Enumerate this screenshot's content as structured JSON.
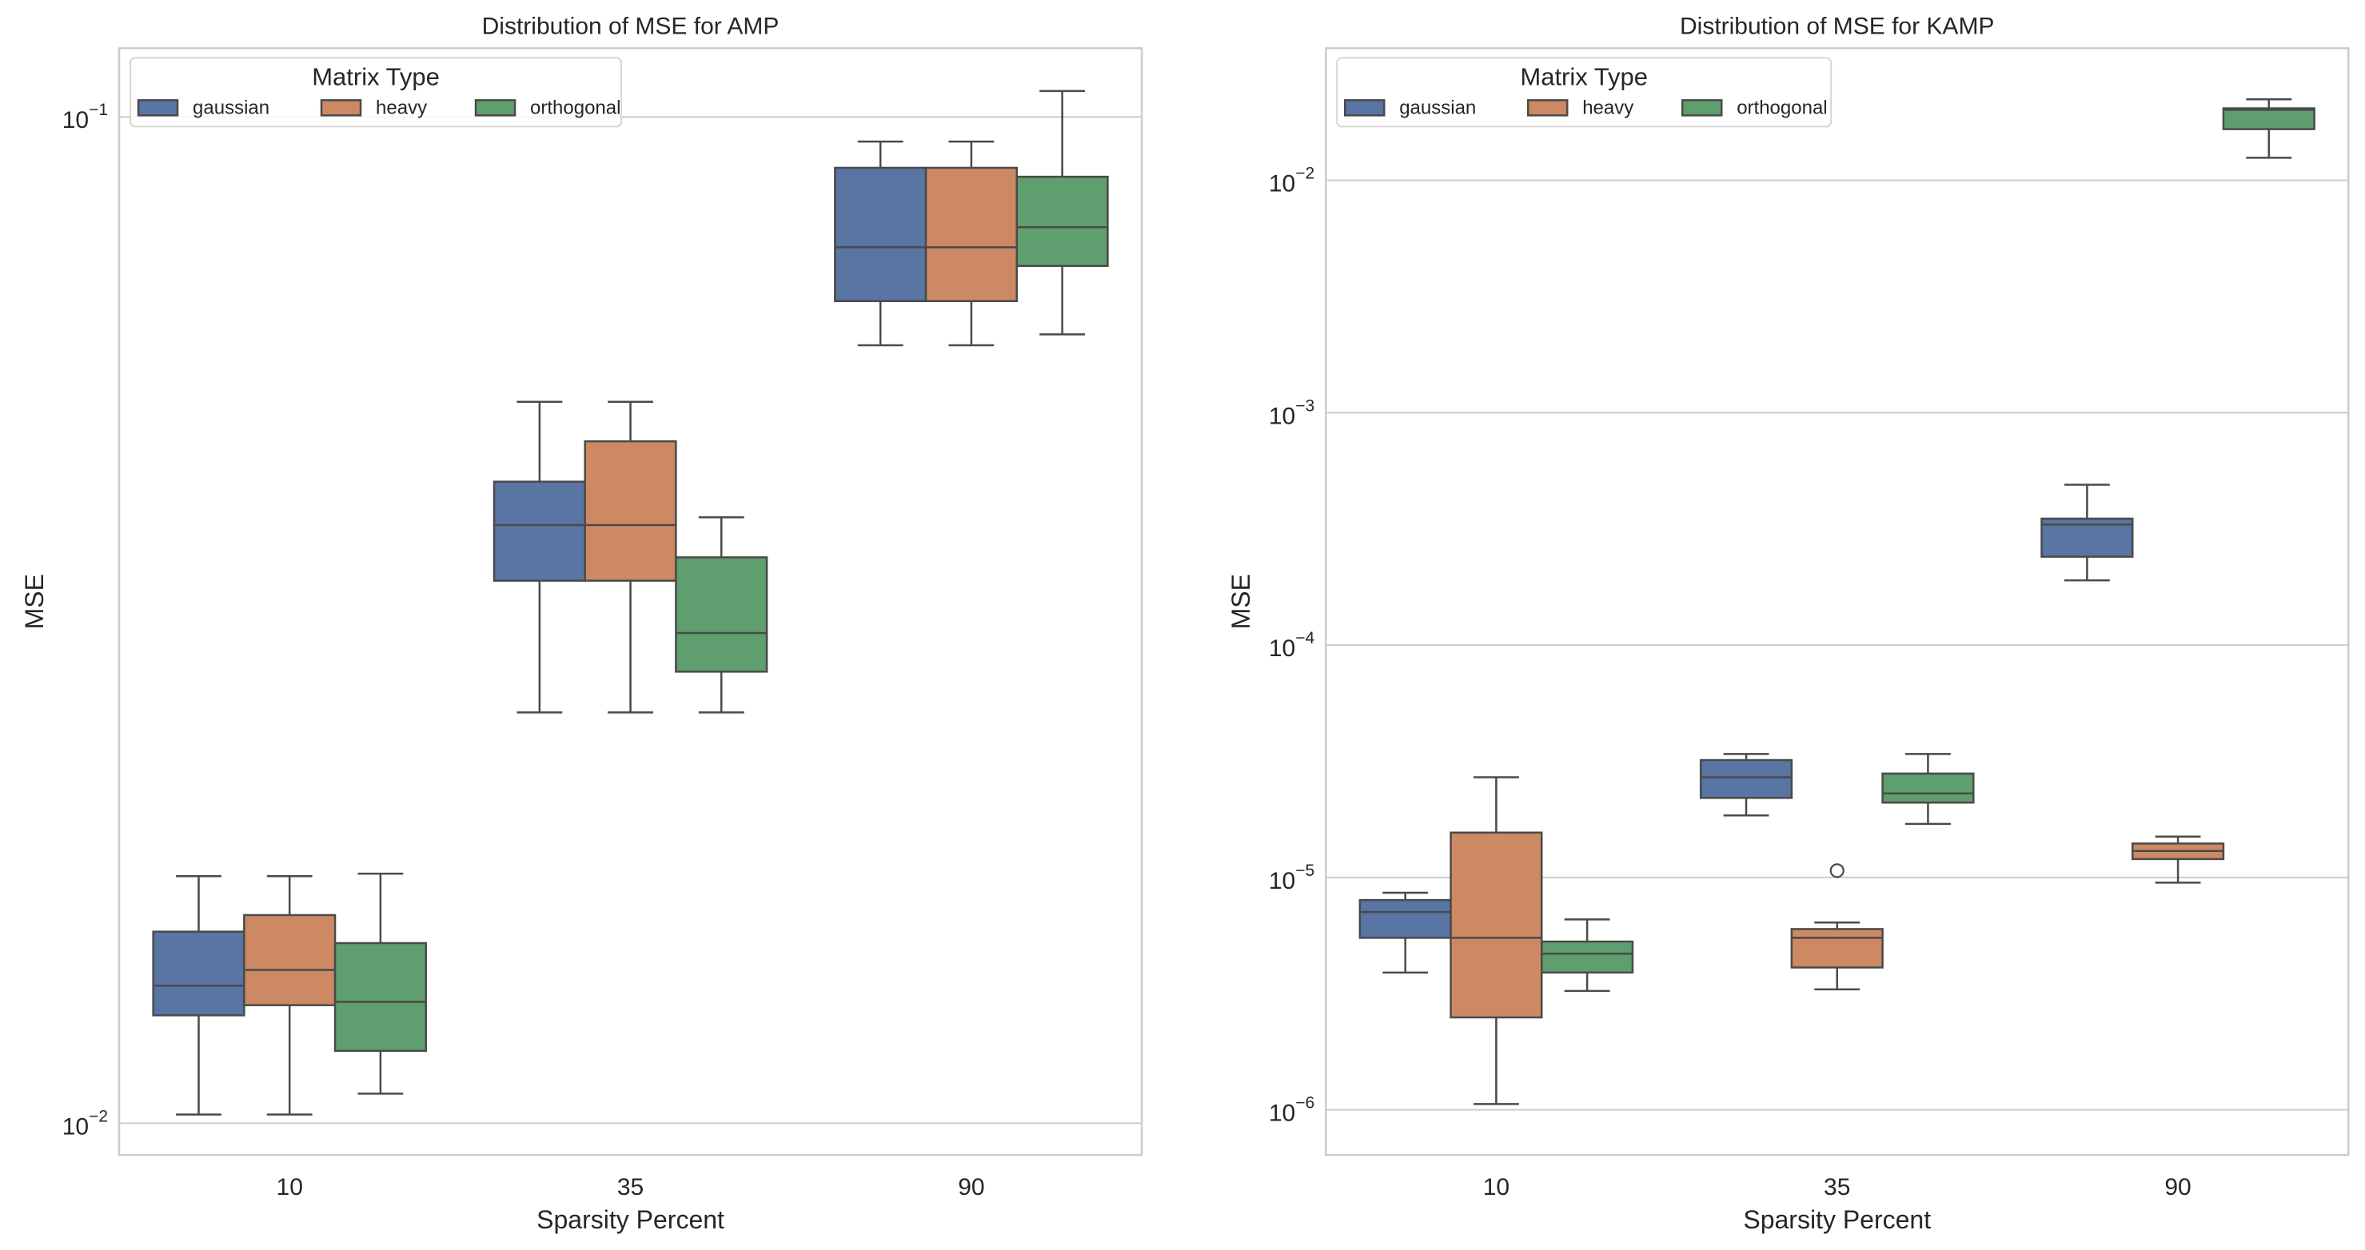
{
  "figure": {
    "legend_title": "Matrix Type",
    "hue_order": [
      "gaussian",
      "heavy",
      "orthogonal"
    ],
    "colors": {
      "gaussian": "#5875a4",
      "heavy": "#cc8963",
      "orthogonal": "#5f9e6e"
    },
    "line_color": "#4a4a4a"
  },
  "chart_data": [
    {
      "type": "box",
      "title": "Distribution of MSE for AMP",
      "xlabel": "Sparsity Percent",
      "ylabel": "MSE",
      "yscale": "log",
      "ylim": [
        0.0093,
        0.117
      ],
      "yticks": [
        {
          "value": 0.1,
          "label_base": "10",
          "label_exp": "−1"
        },
        {
          "value": 0.01,
          "label_base": "10",
          "label_exp": "−2"
        }
      ],
      "grid": true,
      "legend_position": "top-left",
      "categories": [
        "10",
        "35",
        "90"
      ],
      "series": [
        {
          "name": "gaussian",
          "boxes": [
            {
              "whislo": 0.0102,
              "q1": 0.0128,
              "med": 0.0137,
              "q3": 0.0155,
              "whishi": 0.0176,
              "fliers": []
            },
            {
              "whislo": 0.0256,
              "q1": 0.0346,
              "med": 0.0393,
              "q3": 0.0434,
              "whishi": 0.0521,
              "fliers": []
            },
            {
              "whislo": 0.0593,
              "q1": 0.0656,
              "med": 0.0742,
              "q3": 0.089,
              "whishi": 0.0945,
              "fliers": []
            }
          ]
        },
        {
          "name": "heavy",
          "boxes": [
            {
              "whislo": 0.0102,
              "q1": 0.0131,
              "med": 0.0142,
              "q3": 0.0161,
              "whishi": 0.0176,
              "fliers": []
            },
            {
              "whislo": 0.0256,
              "q1": 0.0346,
              "med": 0.0393,
              "q3": 0.0476,
              "whishi": 0.0521,
              "fliers": []
            },
            {
              "whislo": 0.0593,
              "q1": 0.0656,
              "med": 0.0742,
              "q3": 0.089,
              "whishi": 0.0945,
              "fliers": []
            }
          ]
        },
        {
          "name": "orthogonal",
          "boxes": [
            {
              "whislo": 0.0107,
              "q1": 0.0118,
              "med": 0.0132,
              "q3": 0.0151,
              "whishi": 0.0177,
              "fliers": []
            },
            {
              "whislo": 0.0256,
              "q1": 0.0281,
              "med": 0.0307,
              "q3": 0.0365,
              "whishi": 0.04,
              "fliers": []
            },
            {
              "whislo": 0.0608,
              "q1": 0.0711,
              "med": 0.0777,
              "q3": 0.0872,
              "whishi": 0.1061,
              "fliers": []
            }
          ]
        }
      ]
    },
    {
      "type": "box",
      "title": "Distribution of MSE for KAMP",
      "xlabel": "Sparsity Percent",
      "ylabel": "MSE",
      "yscale": "log",
      "ylim": [
        6.4e-07,
        0.037
      ],
      "yticks": [
        {
          "value": 0.01,
          "label_base": "10",
          "label_exp": "−2"
        },
        {
          "value": 0.001,
          "label_base": "10",
          "label_exp": "−3"
        },
        {
          "value": 0.0001,
          "label_base": "10",
          "label_exp": "−4"
        },
        {
          "value": 1e-05,
          "label_base": "10",
          "label_exp": "−5"
        },
        {
          "value": 1e-06,
          "label_base": "10",
          "label_exp": "−6"
        }
      ],
      "grid": true,
      "legend_position": "top-left",
      "categories": [
        "10",
        "35",
        "90"
      ],
      "series": [
        {
          "name": "gaussian",
          "boxes": [
            {
              "whislo": 3.9e-06,
              "q1": 5.5e-06,
              "med": 7.1e-06,
              "q3": 8e-06,
              "whishi": 8.6e-06,
              "fliers": []
            },
            {
              "whislo": 1.85e-05,
              "q1": 2.2e-05,
              "med": 2.7e-05,
              "q3": 3.2e-05,
              "whishi": 3.4e-05,
              "fliers": []
            },
            {
              "whislo": 0.00019,
              "q1": 0.00024,
              "med": 0.00033,
              "q3": 0.00035,
              "whishi": 0.00049,
              "fliers": []
            }
          ]
        },
        {
          "name": "heavy",
          "boxes": [
            {
              "whislo": 1.06e-06,
              "q1": 2.5e-06,
              "med": 5.5e-06,
              "q3": 1.56e-05,
              "whishi": 2.7e-05,
              "fliers": []
            },
            {
              "whislo": 3.3e-06,
              "q1": 4.1e-06,
              "med": 5.5e-06,
              "q3": 6e-06,
              "whishi": 6.4e-06,
              "fliers": [
                1.07e-05
              ]
            },
            {
              "whislo": 9.5e-06,
              "q1": 1.2e-05,
              "med": 1.3e-05,
              "q3": 1.4e-05,
              "whishi": 1.5e-05,
              "fliers": []
            }
          ]
        },
        {
          "name": "orthogonal",
          "boxes": [
            {
              "whislo": 3.25e-06,
              "q1": 3.9e-06,
              "med": 4.7e-06,
              "q3": 5.3e-06,
              "whishi": 6.6e-06,
              "fliers": []
            },
            {
              "whislo": 1.7e-05,
              "q1": 2.1e-05,
              "med": 2.3e-05,
              "q3": 2.8e-05,
              "whishi": 3.4e-05,
              "fliers": []
            },
            {
              "whislo": 0.0125,
              "q1": 0.0166,
              "med": 0.0201,
              "q3": 0.0204,
              "whishi": 0.0223,
              "fliers": []
            }
          ]
        }
      ]
    }
  ]
}
